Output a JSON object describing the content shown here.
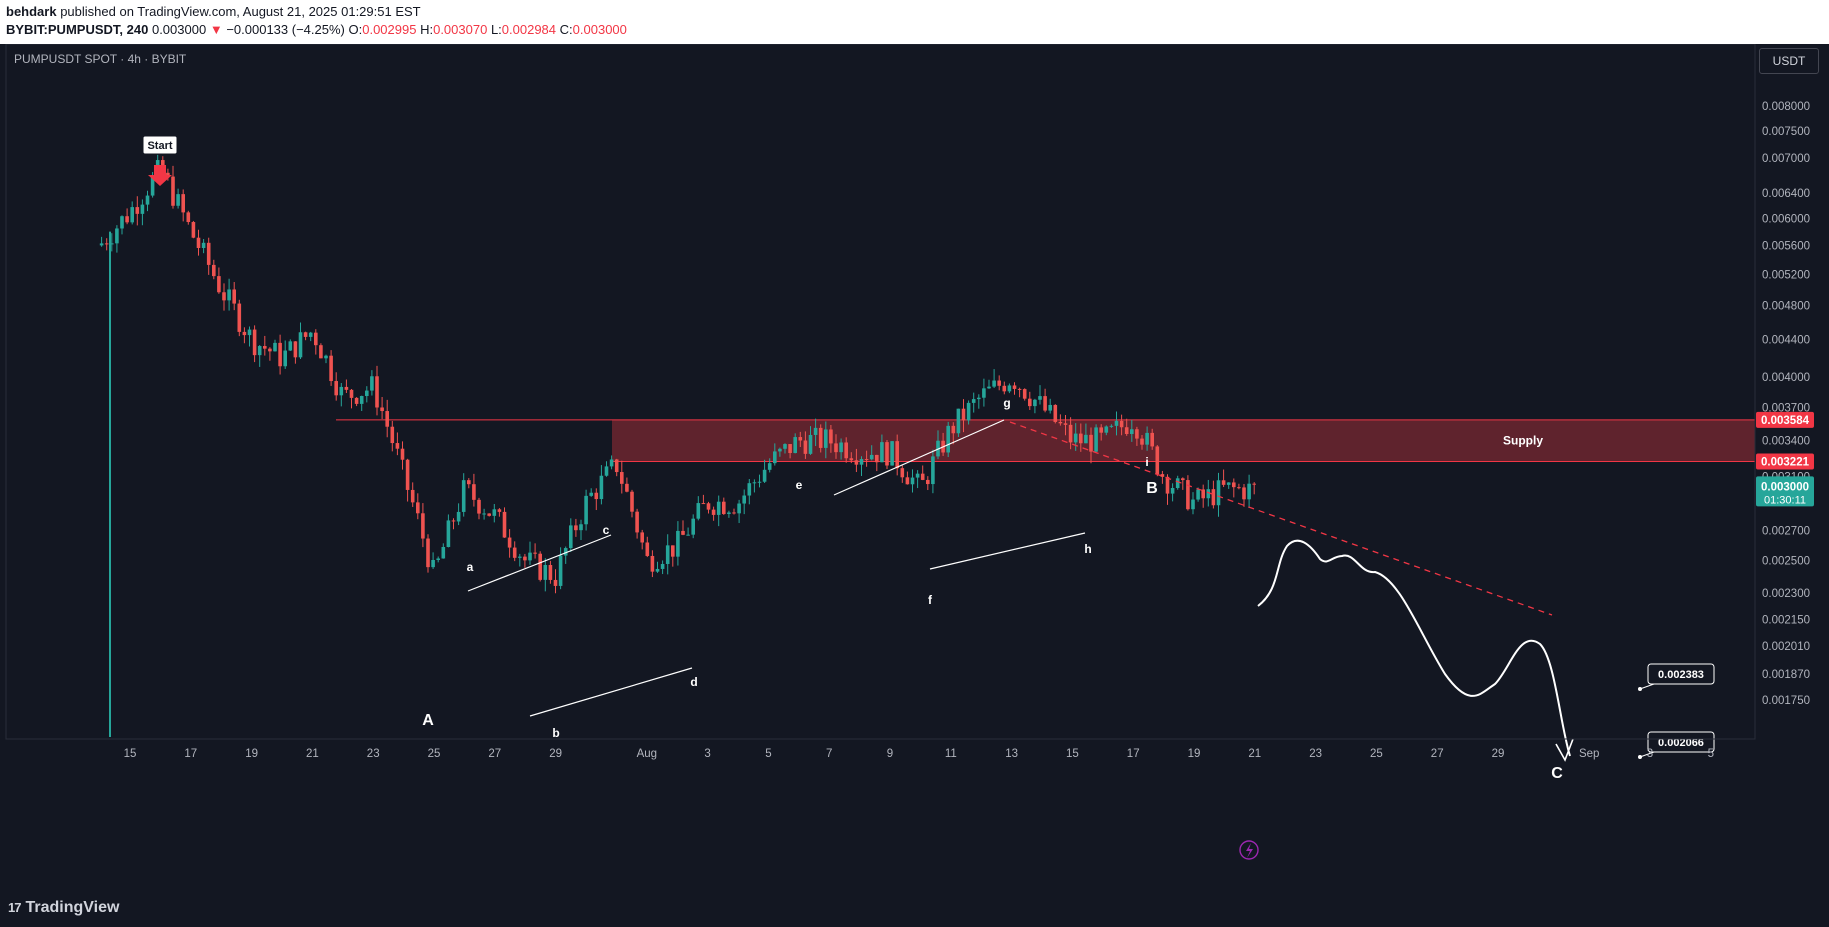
{
  "header": {
    "publisher": "behdark",
    "published_text": "published on TradingView.com, August 21, 2025 01:29:51 EST",
    "symbol": "BYBIT:PUMPUSDT",
    "interval": "240",
    "last": "0.003000",
    "arrow": "▼",
    "change": "−0.000133 (−4.25%)",
    "o_label": "O:",
    "o": "0.002995",
    "h_label": "H:",
    "h": "0.003070",
    "l_label": "L:",
    "l": "0.002984",
    "c_label": "C:",
    "c": "0.003000"
  },
  "legend_title": "PUMPUSDT SPOT · 4h · BYBIT",
  "currency": "USDT",
  "footer": {
    "logo_mark": "17",
    "logo_text": "TradingView"
  },
  "colors": {
    "background": "#131722",
    "up": "#26a69a",
    "down": "#ef5350",
    "supply_zone": "#7a2832",
    "accent_red": "#f23645",
    "drawing": "#ffffff"
  },
  "chart_data": {
    "type": "candlestick",
    "title": "PUMPUSDT SPOT · 4h · BYBIT",
    "x_axis_labels": [
      "15",
      "17",
      "19",
      "21",
      "23",
      "25",
      "27",
      "29",
      "Aug",
      "3",
      "5",
      "7",
      "9",
      "11",
      "13",
      "15",
      "17",
      "19",
      "21",
      "23",
      "25",
      "27",
      "29",
      "Sep",
      "3",
      "5"
    ],
    "y_axis_labels": [
      "0.008000",
      "0.007500",
      "0.007000",
      "0.006400",
      "0.006000",
      "0.005600",
      "0.005200",
      "0.004800",
      "0.004400",
      "0.004000",
      "0.003700",
      "0.003400",
      "0.003100",
      "0.002700",
      "0.002500",
      "0.002300",
      "0.002150",
      "0.002010",
      "0.001870",
      "0.001750"
    ],
    "ylim": [
      0.00163,
      0.0087
    ],
    "y_scale": "log",
    "grid": false,
    "price_path": [
      {
        "x": "Jul 14",
        "y": 0.0056
      },
      {
        "x": "Jul 15",
        "y": 0.0061
      },
      {
        "x": "Jul 16",
        "y": 0.0068
      },
      {
        "x": "Jul 17",
        "y": 0.0058
      },
      {
        "x": "Jul 18",
        "y": 0.005
      },
      {
        "x": "Jul 19",
        "y": 0.0044
      },
      {
        "x": "Jul 20",
        "y": 0.0042
      },
      {
        "x": "Jul 21",
        "y": 0.0045
      },
      {
        "x": "Jul 22",
        "y": 0.0038
      },
      {
        "x": "Jul 23",
        "y": 0.0039
      },
      {
        "x": "Jul 24",
        "y": 0.0031
      },
      {
        "x": "Jul 25",
        "y": 0.0024
      },
      {
        "x": "Jul 26",
        "y": 0.003
      },
      {
        "x": "Jul 27",
        "y": 0.0028
      },
      {
        "x": "Jul 28",
        "y": 0.0025
      },
      {
        "x": "Jul 29",
        "y": 0.0024
      },
      {
        "x": "Jul 30",
        "y": 0.0029
      },
      {
        "x": "Jul 31",
        "y": 0.0032
      },
      {
        "x": "Aug 1",
        "y": 0.0025
      },
      {
        "x": "Aug 2",
        "y": 0.0026
      },
      {
        "x": "Aug 3",
        "y": 0.0029
      },
      {
        "x": "Aug 4",
        "y": 0.0029
      },
      {
        "x": "Aug 5",
        "y": 0.0032
      },
      {
        "x": "Aug 6",
        "y": 0.0034
      },
      {
        "x": "Aug 7",
        "y": 0.0034
      },
      {
        "x": "Aug 8",
        "y": 0.0033
      },
      {
        "x": "Aug 9",
        "y": 0.0033
      },
      {
        "x": "Aug 10",
        "y": 0.003
      },
      {
        "x": "Aug 11",
        "y": 0.0035
      },
      {
        "x": "Aug 12",
        "y": 0.0038
      },
      {
        "x": "Aug 13",
        "y": 0.004
      },
      {
        "x": "Aug 14",
        "y": 0.0037
      },
      {
        "x": "Aug 15",
        "y": 0.0034
      },
      {
        "x": "Aug 16",
        "y": 0.0034
      },
      {
        "x": "Aug 17",
        "y": 0.0036
      },
      {
        "x": "Aug 18",
        "y": 0.0031
      },
      {
        "x": "Aug 19",
        "y": 0.0029
      },
      {
        "x": "Aug 20",
        "y": 0.003
      },
      {
        "x": "Aug 21",
        "y": 0.003
      }
    ],
    "last_price": {
      "value": "0.003000",
      "timer": "01:30:11"
    },
    "supply_zone": {
      "label": "Supply",
      "top": "0.003584",
      "bottom": "0.003221"
    },
    "wave_labels": [
      "Start",
      "A",
      "B",
      "C",
      "a",
      "b",
      "c",
      "d",
      "e",
      "f",
      "g",
      "h",
      "i"
    ],
    "targets": [
      "0.002383",
      "0.002066"
    ]
  }
}
